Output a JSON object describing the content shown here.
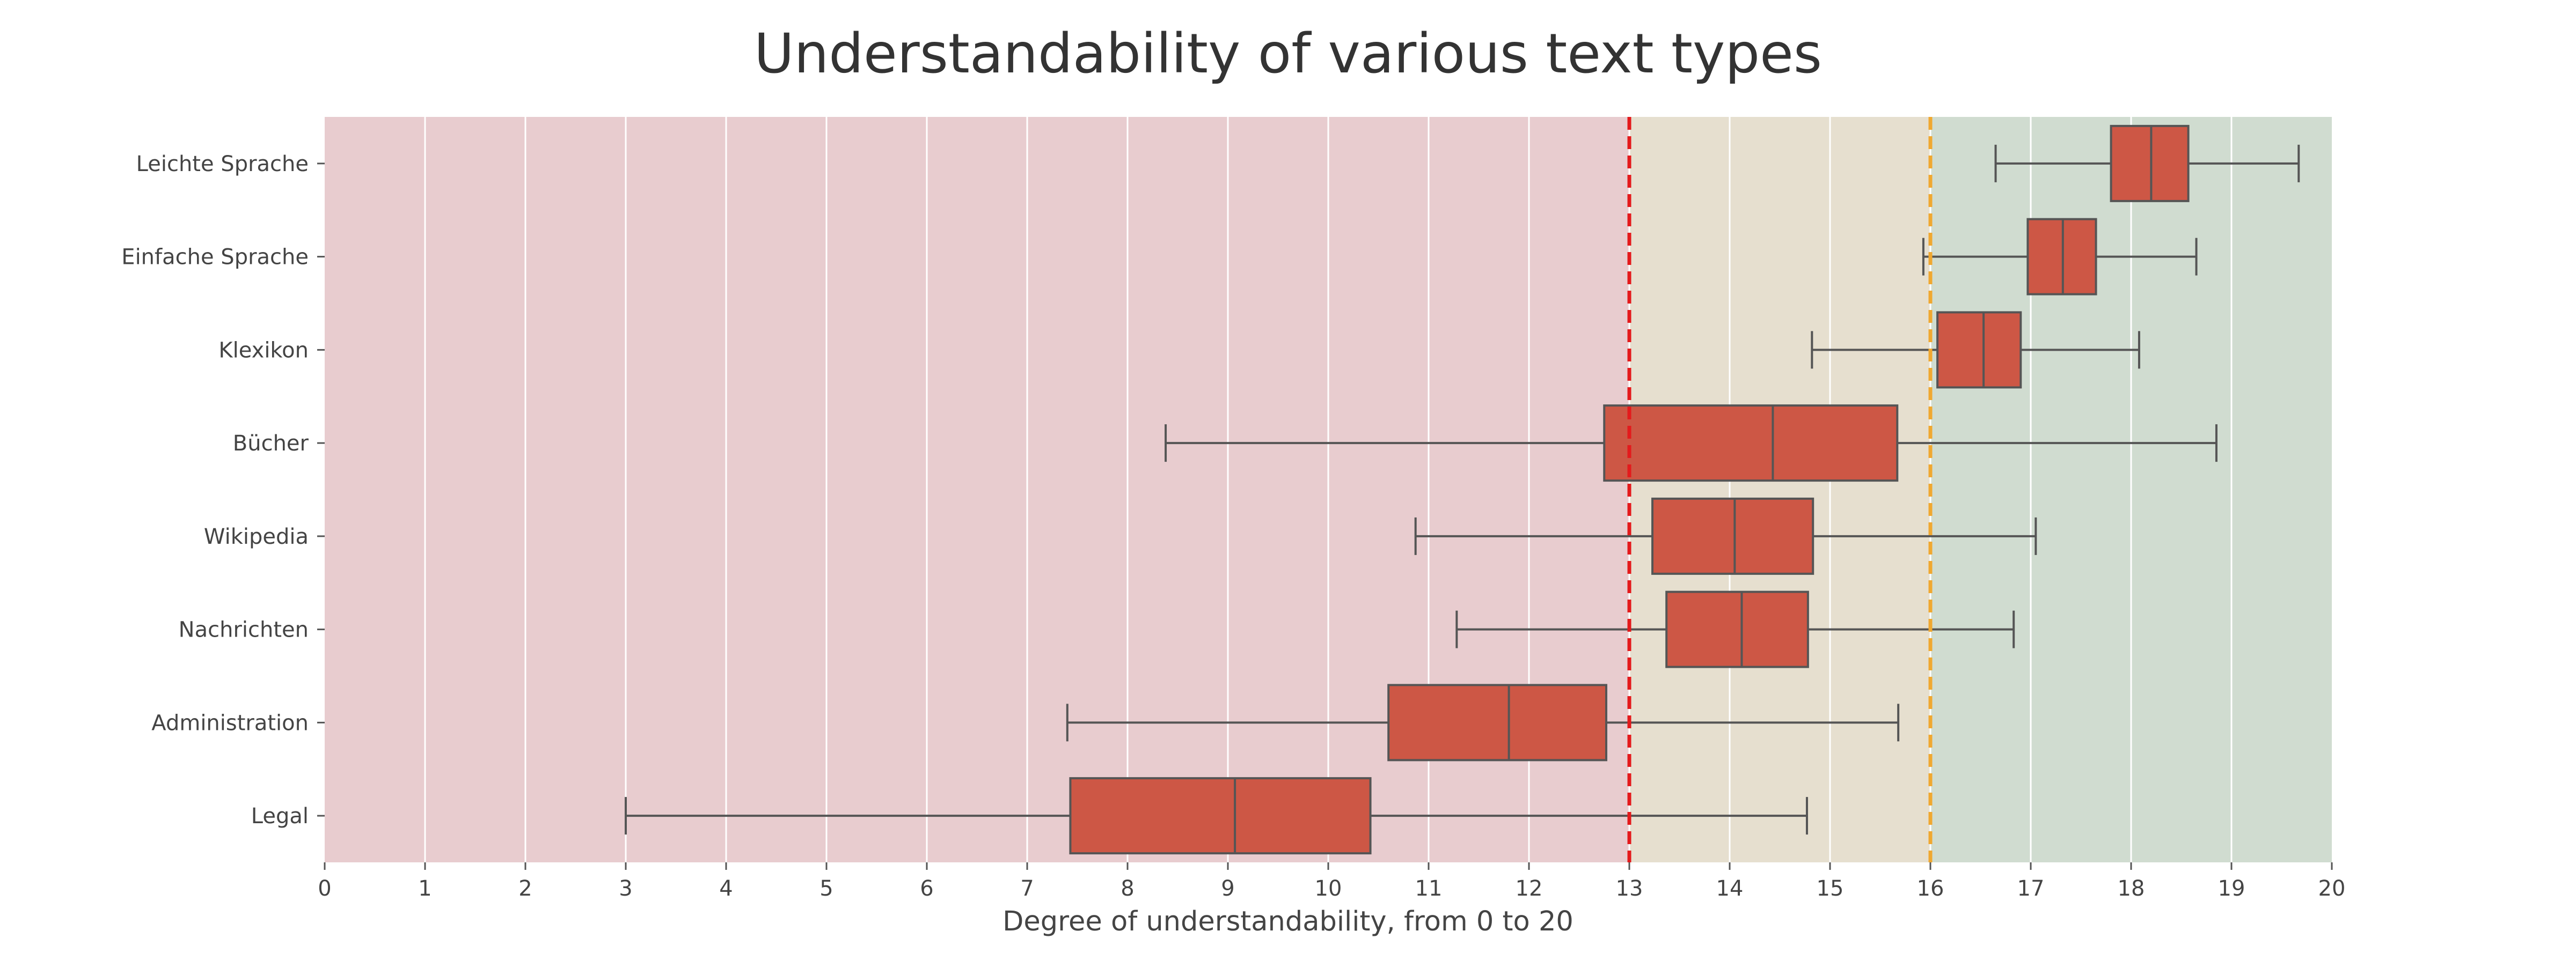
{
  "chart_data": {
    "type": "boxplot",
    "orientation": "horizontal",
    "title": "Understandability of various text types",
    "xlabel": "Degree of understandability, from 0 to 20",
    "ylabel": "",
    "xlim": [
      0,
      20
    ],
    "xticks": [
      "0",
      "1",
      "2",
      "3",
      "4",
      "5",
      "6",
      "7",
      "8",
      "9",
      "10",
      "11",
      "12",
      "13",
      "14",
      "15",
      "16",
      "17",
      "18",
      "19",
      "20"
    ],
    "grid": true,
    "colors": {
      "box_fill": "#CD5745",
      "box_edge": "#555555",
      "zone_hard": "#E8CCCF",
      "zone_medium": "#E6DFCF",
      "zone_easy": "#D0DCD0",
      "threshold_red": "#E41A1C",
      "threshold_orange": "#F0A830"
    },
    "zones": [
      {
        "from": 0,
        "to": 13,
        "color_key": "zone_hard"
      },
      {
        "from": 13,
        "to": 16,
        "color_key": "zone_medium"
      },
      {
        "from": 16,
        "to": 20,
        "color_key": "zone_easy"
      }
    ],
    "thresholds": [
      {
        "x": 13,
        "color_key": "threshold_red",
        "style": "dashed"
      },
      {
        "x": 16,
        "color_key": "threshold_orange",
        "style": "dashed"
      }
    ],
    "categories": [
      "Leichte Sprache",
      "Einfache Sprache",
      "Klexikon",
      "Bücher",
      "Wikipedia",
      "Nachrichten",
      "Administration",
      "Legal"
    ],
    "boxes": [
      {
        "label": "Leichte Sprache",
        "whisker_low": 16.65,
        "q1": 17.8,
        "median": 18.2,
        "q3": 18.57,
        "whisker_high": 19.67
      },
      {
        "label": "Einfache Sprache",
        "whisker_low": 15.93,
        "q1": 16.97,
        "median": 17.32,
        "q3": 17.65,
        "whisker_high": 18.65
      },
      {
        "label": "Klexikon",
        "whisker_low": 14.82,
        "q1": 16.07,
        "median": 16.53,
        "q3": 16.9,
        "whisker_high": 18.08
      },
      {
        "label": "Bücher",
        "whisker_low": 8.38,
        "q1": 12.75,
        "median": 14.43,
        "q3": 15.67,
        "whisker_high": 18.85
      },
      {
        "label": "Wikipedia",
        "whisker_low": 10.87,
        "q1": 13.23,
        "median": 14.05,
        "q3": 14.83,
        "whisker_high": 17.05
      },
      {
        "label": "Nachrichten",
        "whisker_low": 11.28,
        "q1": 13.37,
        "median": 14.12,
        "q3": 14.78,
        "whisker_high": 16.83
      },
      {
        "label": "Administration",
        "whisker_low": 7.4,
        "q1": 10.6,
        "median": 11.8,
        "q3": 12.77,
        "whisker_high": 15.68
      },
      {
        "label": "Legal",
        "whisker_low": 3.0,
        "q1": 7.43,
        "median": 9.07,
        "q3": 10.42,
        "whisker_high": 14.77
      }
    ]
  }
}
